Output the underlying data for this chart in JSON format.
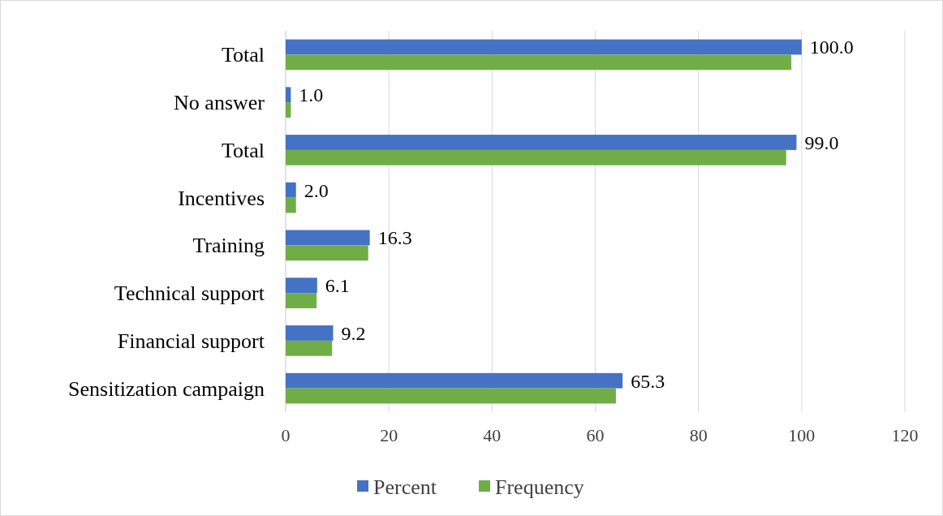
{
  "chart_data": {
    "type": "bar",
    "orientation": "horizontal",
    "categories": [
      "Total",
      "No answer",
      "Total",
      "Incentives",
      "Training",
      "Technical support",
      "Financial support",
      "Sensitization campaign"
    ],
    "series": [
      {
        "name": "Percent",
        "color": "#4472c4",
        "values": [
          100.0,
          1.0,
          99.0,
          2.0,
          16.3,
          6.1,
          9.2,
          65.3
        ],
        "value_labels": [
          "100.0",
          "1.0",
          "99.0",
          "2.0",
          "16.3",
          "6.1",
          "9.2",
          "65.3"
        ]
      },
      {
        "name": "Frequency",
        "color": "#70ad47",
        "values": [
          98,
          1,
          97,
          2,
          16,
          6,
          9,
          64
        ]
      }
    ],
    "xlim": [
      0,
      120
    ],
    "xticks": [
      0,
      20,
      40,
      60,
      80,
      100,
      120
    ],
    "grid": "x",
    "legend": "bottom"
  }
}
